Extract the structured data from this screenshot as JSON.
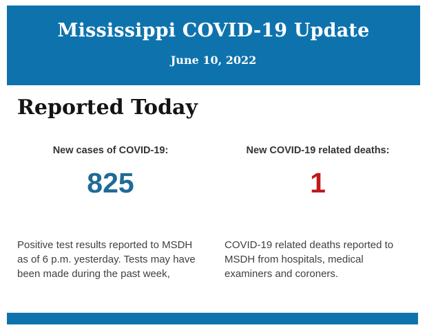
{
  "header": {
    "title": "Mississippi COVID-19 Update",
    "date": "June 10, 2022",
    "bg_color": "#0e73ad",
    "text_color": "#ffffff"
  },
  "section": {
    "heading": "Reported Today"
  },
  "stats": [
    {
      "label": "New cases of COVID-19:",
      "value": "825",
      "value_color": "#1e6b96",
      "description": "Positive test results reported to MSDH as of 6 p.m. yesterday. Tests may have been made during the past week,"
    },
    {
      "label": "New COVID-19 related deaths:",
      "value": "1",
      "value_color": "#bf1a1a",
      "description": "COVID-19 related deaths reported to MSDH from hospitals, medical examiners and coroners."
    }
  ],
  "footer": {
    "bar_color": "#0e73ad"
  }
}
